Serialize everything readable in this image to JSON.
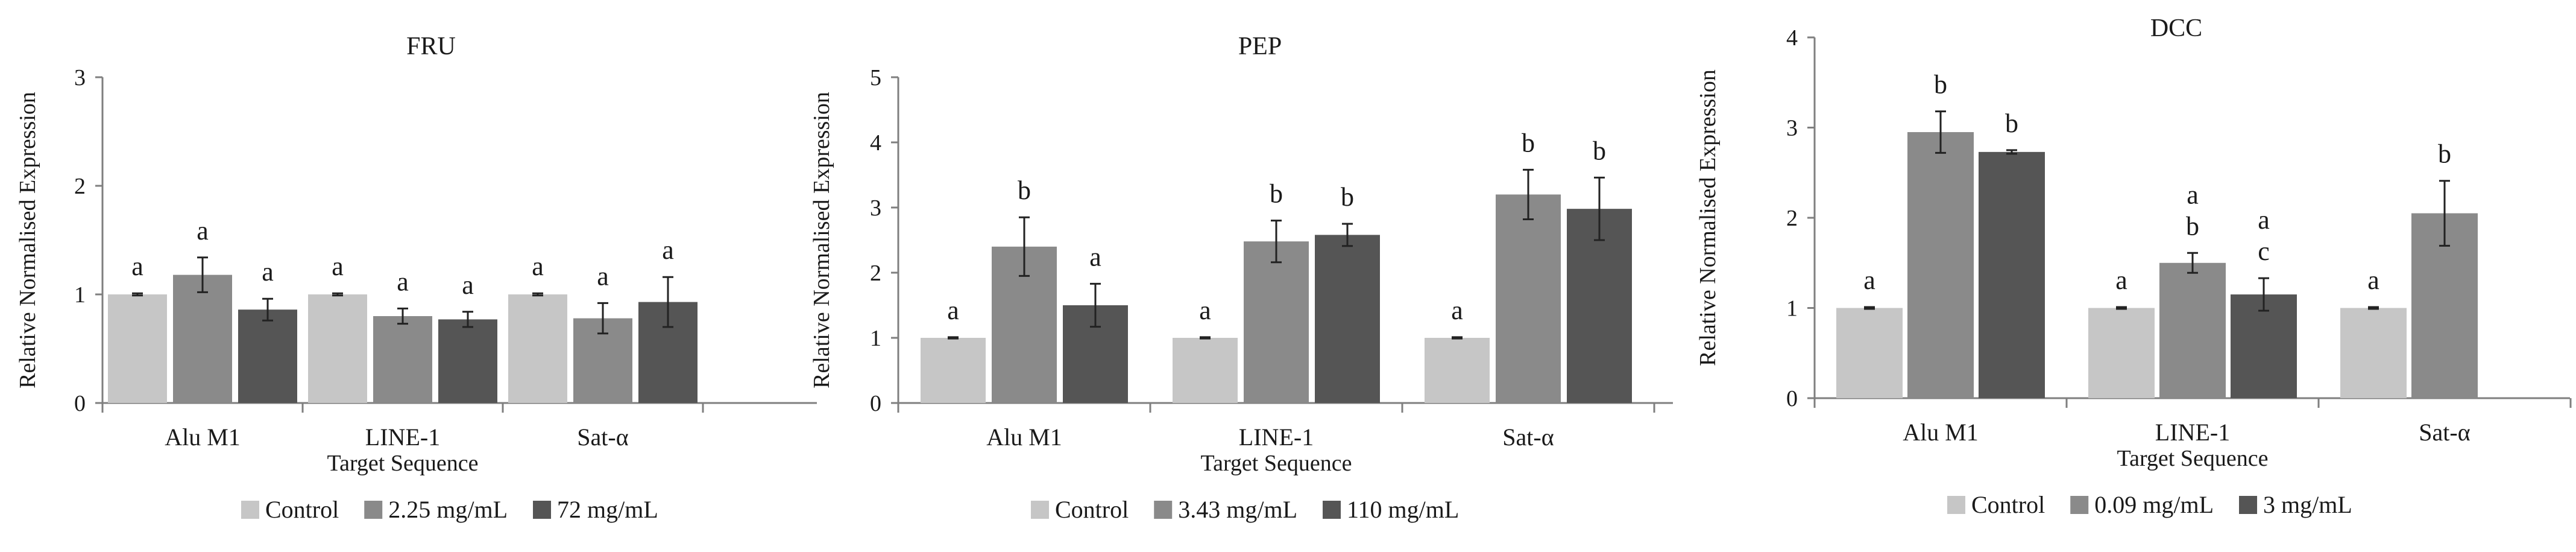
{
  "chart_data": [
    {
      "type": "bar",
      "title": "FRU",
      "xlabel": "Target Sequence",
      "ylabel": "Relative Normalised Expression",
      "ylim": [
        0,
        3
      ],
      "yticks": [
        "0",
        "1",
        "2",
        "3"
      ],
      "categories": [
        "Alu M1",
        "LINE-1",
        "Sat-α"
      ],
      "series": [
        {
          "name": "Control",
          "color": "#c6c6c6",
          "values": [
            1.0,
            1.0,
            1.0
          ],
          "errors": [
            0.01,
            0.01,
            0.01
          ],
          "labels": [
            "a",
            "a",
            "a"
          ]
        },
        {
          "name": "2.25 mg/mL",
          "color": "#8a8a8a",
          "values": [
            1.18,
            0.8,
            0.78
          ],
          "errors": [
            0.16,
            0.07,
            0.14
          ],
          "labels": [
            "a",
            "a",
            "a"
          ]
        },
        {
          "name": "72 mg/mL",
          "color": "#555555",
          "values": [
            0.86,
            0.77,
            0.93
          ],
          "errors": [
            0.1,
            0.07,
            0.23
          ],
          "labels": [
            "a",
            "a",
            "a"
          ]
        }
      ]
    },
    {
      "type": "bar",
      "title": "PEP",
      "xlabel": "Target Sequence",
      "ylabel": "Relative Normalised Expression",
      "ylim": [
        0,
        5
      ],
      "yticks": [
        "0",
        "1",
        "2",
        "3",
        "4",
        "5"
      ],
      "categories": [
        "Alu M1",
        "LINE-1",
        "Sat-α"
      ],
      "series": [
        {
          "name": "Control",
          "color": "#c6c6c6",
          "values": [
            1.0,
            1.0,
            1.0
          ],
          "errors": [
            0.01,
            0.01,
            0.01
          ],
          "labels": [
            "a",
            "a",
            "a"
          ]
        },
        {
          "name": "3.43 mg/mL",
          "color": "#8a8a8a",
          "values": [
            2.4,
            2.48,
            3.2
          ],
          "errors": [
            0.45,
            0.32,
            0.38
          ],
          "labels": [
            "b",
            "b",
            "b"
          ]
        },
        {
          "name": "110 mg/mL",
          "color": "#555555",
          "values": [
            1.5,
            2.58,
            2.98
          ],
          "errors": [
            0.33,
            0.17,
            0.48
          ],
          "labels": [
            "a",
            "b",
            "b"
          ]
        }
      ]
    },
    {
      "type": "bar",
      "title": "DCC",
      "xlabel": "Target Sequence",
      "ylabel": "Relative Normalised Expression",
      "ylim": [
        0,
        4
      ],
      "yticks": [
        "0",
        "1",
        "2",
        "3",
        "4"
      ],
      "categories": [
        "Alu M1",
        "LINE-1",
        "Sat-α"
      ],
      "series": [
        {
          "name": "Control",
          "color": "#c6c6c6",
          "values": [
            1.0,
            1.0,
            1.0
          ],
          "errors": [
            0.01,
            0.01,
            0.01
          ],
          "labels": [
            "a",
            "a",
            "a"
          ]
        },
        {
          "name": "0.09 mg/mL",
          "color": "#8a8a8a",
          "values": [
            2.95,
            1.5,
            2.05
          ],
          "errors": [
            0.23,
            0.11,
            0.36
          ],
          "labels": [
            "b",
            "a\nb",
            "b"
          ]
        },
        {
          "name": "3 mg/mL",
          "color": "#555555",
          "values": [
            2.73,
            1.15,
            null
          ],
          "errors": [
            0.02,
            0.18,
            null
          ],
          "labels": [
            "b",
            "a\nc",
            ""
          ]
        }
      ]
    }
  ]
}
